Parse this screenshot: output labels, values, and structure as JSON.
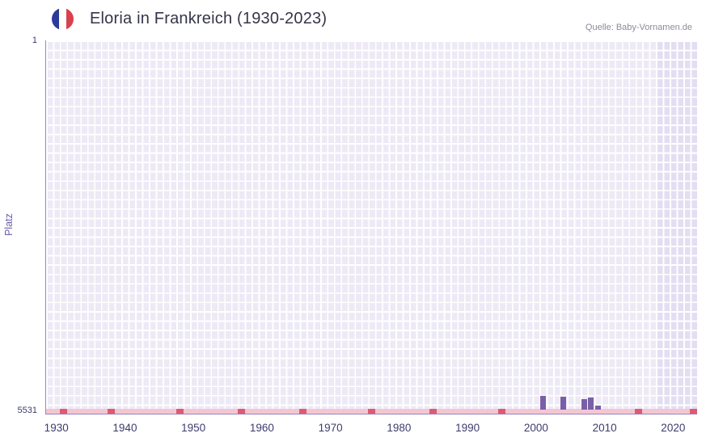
{
  "header": {
    "title": "Eloria in Frankreich (1930-2023)",
    "source": "Quelle: Baby-Vornamen.de",
    "flag_icon": "france-flag-icon"
  },
  "chart_data": {
    "type": "bar",
    "title": "Eloria in Frankreich (1930-2023)",
    "xlabel": "",
    "ylabel": "Platz",
    "y_top_label": "1",
    "y_bottom_label": "5531",
    "y_range_rank": [
      1,
      5531
    ],
    "y_inverted": true,
    "grid": true,
    "x_range": [
      1929,
      2024
    ],
    "x_ticks": [
      "1930",
      "1940",
      "1950",
      "1960",
      "1970",
      "1980",
      "1990",
      "2000",
      "2010",
      "2020"
    ],
    "points": [
      {
        "year": 2001,
        "rank": 5328
      },
      {
        "year": 2004,
        "rank": 5339
      },
      {
        "year": 2007,
        "rank": 5377
      },
      {
        "year": 2008,
        "rank": 5355
      },
      {
        "year": 2009,
        "rank": 5473
      }
    ],
    "unranked_rank": 5531,
    "baseline_marker_years": [
      1931,
      1938,
      1948,
      1957,
      1966,
      1976,
      1985,
      1995,
      2015,
      2023
    ],
    "highlight_band": {
      "from_year": 2018,
      "to_year": 2024
    },
    "colors": {
      "page_bg": "#ffffff",
      "plot_bg": "#edeaf6",
      "band_bg": "#e3def2",
      "grid": "#ffffff",
      "bar": "#7a5fa8",
      "baseline": "#f4c6d2",
      "baseline_marker": "#df5a70",
      "axis_line": "#9486c4",
      "tick_text": "#3c3c6e",
      "y_title_text": "#6a5aab",
      "title_text": "#35354a",
      "source_text": "#8b8b9a",
      "flag_blue": "#2b3a9b",
      "flag_white": "#ffffff",
      "flag_red": "#d8414d"
    }
  }
}
